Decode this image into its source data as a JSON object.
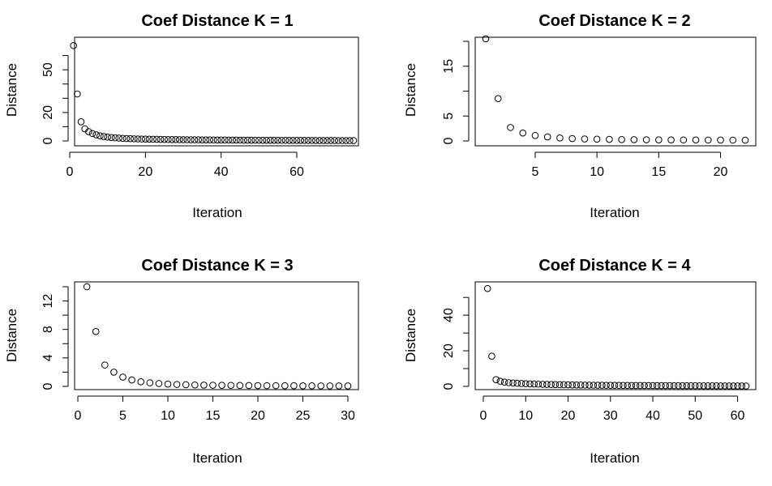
{
  "chart_data": [
    {
      "type": "scatter",
      "title": "Coef Distance K = 1",
      "xlabel": "Iteration",
      "ylabel": "Distance",
      "xlim": [
        0,
        75
      ],
      "ylim": [
        0,
        70
      ],
      "xticks": [
        0,
        20,
        40,
        60
      ],
      "yticks": [
        0,
        20,
        50
      ],
      "yminor": [
        10,
        30,
        40,
        60
      ],
      "x": [
        1,
        2,
        3,
        4,
        5,
        6,
        7,
        8,
        9,
        10,
        11,
        12,
        13,
        14,
        15,
        16,
        17,
        18,
        19,
        20,
        21,
        22,
        23,
        24,
        25,
        26,
        27,
        28,
        29,
        30,
        31,
        32,
        33,
        34,
        35,
        36,
        37,
        38,
        39,
        40,
        41,
        42,
        43,
        44,
        45,
        46,
        47,
        48,
        49,
        50,
        51,
        52,
        53,
        54,
        55,
        56,
        57,
        58,
        59,
        60,
        61,
        62,
        63,
        64,
        65,
        66,
        67,
        68,
        69,
        70,
        71,
        72,
        73,
        74,
        75
      ],
      "y": [
        67,
        33,
        13.5,
        8.5,
        6.5,
        5.2,
        4.3,
        3.6,
        3.1,
        2.7,
        2.4,
        2.2,
        2.0,
        1.85,
        1.7,
        1.6,
        1.5,
        1.42,
        1.35,
        1.3,
        1.25,
        1.2,
        1.15,
        1.1,
        1.05,
        1.0,
        0.97,
        0.94,
        0.91,
        0.88,
        0.85,
        0.83,
        0.81,
        0.79,
        0.77,
        0.75,
        0.73,
        0.71,
        0.69,
        0.67,
        0.65,
        0.63,
        0.61,
        0.59,
        0.57,
        0.55,
        0.53,
        0.51,
        0.5,
        0.49,
        0.48,
        0.47,
        0.46,
        0.45,
        0.44,
        0.43,
        0.42,
        0.41,
        0.4,
        0.39,
        0.38,
        0.37,
        0.36,
        0.35,
        0.34,
        0.33,
        0.32,
        0.31,
        0.3,
        0.3,
        0.29,
        0.29,
        0.28,
        0.28,
        0.27
      ]
    },
    {
      "type": "scatter",
      "title": "Coef Distance K = 2",
      "xlabel": "Iteration",
      "ylabel": "Distance",
      "xlim": [
        1,
        22
      ],
      "ylim": [
        0,
        20
      ],
      "xticks": [
        5,
        10,
        15,
        20
      ],
      "yticks": [
        0,
        5,
        15
      ],
      "yminor": [
        10,
        20
      ],
      "x": [
        1,
        2,
        3,
        4,
        5,
        6,
        7,
        8,
        9,
        10,
        11,
        12,
        13,
        14,
        15,
        16,
        17,
        18,
        19,
        20,
        21,
        22
      ],
      "y": [
        20.5,
        8.5,
        2.7,
        1.6,
        1.1,
        0.8,
        0.6,
        0.48,
        0.4,
        0.35,
        0.31,
        0.28,
        0.26,
        0.24,
        0.22,
        0.21,
        0.2,
        0.19,
        0.18,
        0.17,
        0.16,
        0.15
      ]
    },
    {
      "type": "scatter",
      "title": "Coef Distance K = 3",
      "xlabel": "Iteration",
      "ylabel": "Distance",
      "xlim": [
        0,
        30
      ],
      "ylim": [
        0,
        14
      ],
      "xticks": [
        0,
        5,
        10,
        15,
        20,
        25,
        30
      ],
      "yticks": [
        0,
        4,
        8,
        12
      ],
      "yminor": [
        2,
        6,
        10,
        14
      ],
      "x": [
        1,
        2,
        3,
        4,
        5,
        6,
        7,
        8,
        9,
        10,
        11,
        12,
        13,
        14,
        15,
        16,
        17,
        18,
        19,
        20,
        21,
        22,
        23,
        24,
        25,
        26,
        27,
        28,
        29,
        30
      ],
      "y": [
        14.0,
        7.7,
        3.0,
        2.0,
        1.3,
        0.9,
        0.65,
        0.5,
        0.4,
        0.32,
        0.27,
        0.23,
        0.2,
        0.18,
        0.16,
        0.15,
        0.14,
        0.13,
        0.12,
        0.11,
        0.1,
        0.1,
        0.09,
        0.09,
        0.08,
        0.08,
        0.07,
        0.07,
        0.06,
        0.06
      ]
    },
    {
      "type": "scatter",
      "title": "Coef Distance K = 4",
      "xlabel": "Iteration",
      "ylabel": "Distance",
      "xlim": [
        0,
        62
      ],
      "ylim": [
        0,
        56
      ],
      "xticks": [
        0,
        10,
        20,
        30,
        40,
        50,
        60
      ],
      "yticks": [
        0,
        20,
        40
      ],
      "yminor": [
        10,
        30,
        50
      ],
      "x": [
        1,
        2,
        3,
        4,
        5,
        6,
        7,
        8,
        9,
        10,
        11,
        12,
        13,
        14,
        15,
        16,
        17,
        18,
        19,
        20,
        21,
        22,
        23,
        24,
        25,
        26,
        27,
        28,
        29,
        30,
        31,
        32,
        33,
        34,
        35,
        36,
        37,
        38,
        39,
        40,
        41,
        42,
        43,
        44,
        45,
        46,
        47,
        48,
        49,
        50,
        51,
        52,
        53,
        54,
        55,
        56,
        57,
        58,
        59,
        60,
        61,
        62
      ],
      "y": [
        55,
        17,
        3.8,
        2.9,
        2.4,
        2.1,
        1.9,
        1.75,
        1.6,
        1.5,
        1.4,
        1.32,
        1.25,
        1.18,
        1.12,
        1.06,
        1.0,
        0.96,
        0.92,
        0.88,
        0.84,
        0.8,
        0.77,
        0.74,
        0.71,
        0.68,
        0.66,
        0.64,
        0.62,
        0.6,
        0.58,
        0.56,
        0.54,
        0.52,
        0.5,
        0.49,
        0.48,
        0.47,
        0.46,
        0.45,
        0.44,
        0.43,
        0.42,
        0.41,
        0.4,
        0.39,
        0.38,
        0.37,
        0.36,
        0.35,
        0.34,
        0.33,
        0.32,
        0.31,
        0.3,
        0.29,
        0.28,
        0.27,
        0.26,
        0.25,
        0.24,
        0.23
      ]
    }
  ]
}
